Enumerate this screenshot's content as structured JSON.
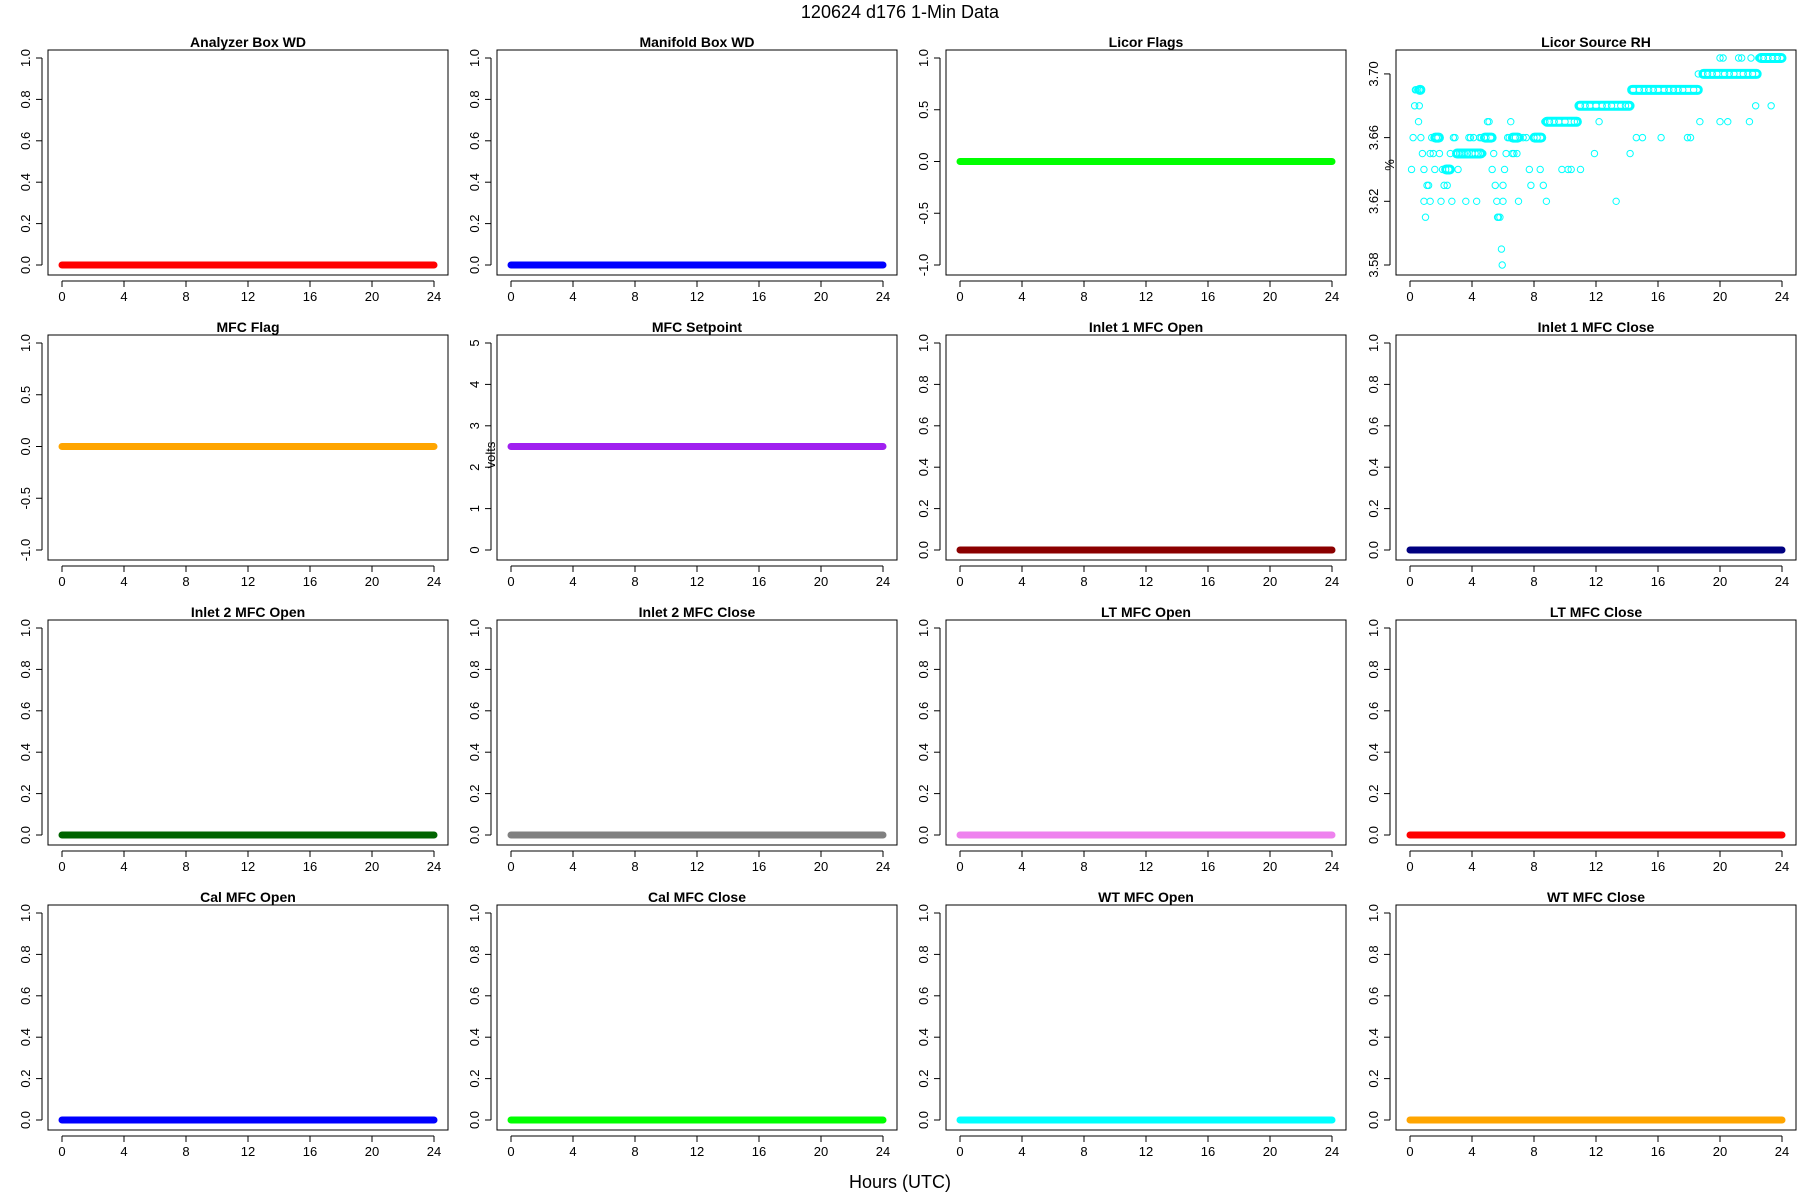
{
  "figure": {
    "title": "120624   d176   1-Min Data",
    "xlabel": "Hours (UTC)"
  },
  "chart_data": [
    {
      "type": "line",
      "title": "Analyzer Box WD",
      "color": "#ff0000",
      "ylabel": "",
      "ylim": [
        0,
        1
      ],
      "yticks": [
        0,
        0.2,
        0.4,
        0.6,
        0.8,
        1
      ],
      "ytick_labels": [
        "0.0",
        "0.2",
        "0.4",
        "0.6",
        "0.8",
        "1.0"
      ],
      "xlim": [
        0,
        24
      ],
      "xticks": [
        0,
        4,
        8,
        12,
        16,
        20,
        24
      ],
      "x": [
        0,
        24
      ],
      "y": [
        0,
        0
      ]
    },
    {
      "type": "line",
      "title": "Manifold Box WD",
      "color": "#0000ff",
      "ylabel": "",
      "ylim": [
        0,
        1
      ],
      "yticks": [
        0,
        0.2,
        0.4,
        0.6,
        0.8,
        1
      ],
      "ytick_labels": [
        "0.0",
        "0.2",
        "0.4",
        "0.6",
        "0.8",
        "1.0"
      ],
      "xlim": [
        0,
        24
      ],
      "xticks": [
        0,
        4,
        8,
        12,
        16,
        20,
        24
      ],
      "x": [
        0,
        24
      ],
      "y": [
        0,
        0
      ]
    },
    {
      "type": "line",
      "title": "Licor Flags",
      "color": "#00ff00",
      "ylabel": "",
      "ylim": [
        -1,
        1
      ],
      "yticks": [
        -1,
        -0.5,
        0,
        0.5,
        1
      ],
      "ytick_labels": [
        "-1.0",
        "-0.5",
        "0.0",
        "0.5",
        "1.0"
      ],
      "xlim": [
        0,
        24
      ],
      "xticks": [
        0,
        4,
        8,
        12,
        16,
        20,
        24
      ],
      "x": [
        0,
        24
      ],
      "y": [
        0,
        0
      ]
    },
    {
      "type": "scatter",
      "title": "Licor Source RH",
      "color": "#00ffff",
      "ylabel": "%",
      "ylim": [
        3.58,
        3.71
      ],
      "yticks": [
        3.58,
        3.62,
        3.66,
        3.7
      ],
      "ytick_labels": [
        "3.58",
        "3.62",
        "3.66",
        "3.70"
      ],
      "xlim": [
        0,
        24
      ],
      "xticks": [
        0,
        4,
        8,
        12,
        16,
        20,
        24
      ],
      "points": [
        [
          0.1,
          3.64
        ],
        [
          0.2,
          3.66
        ],
        [
          0.3,
          3.68
        ],
        [
          0.35,
          3.69
        ],
        [
          0.4,
          3.69
        ],
        [
          0.5,
          3.69
        ],
        [
          0.55,
          3.67
        ],
        [
          0.6,
          3.68
        ],
        [
          0.7,
          3.66
        ],
        [
          0.8,
          3.65
        ],
        [
          0.9,
          3.64
        ],
        [
          0.9,
          3.62
        ],
        [
          1.0,
          3.61
        ],
        [
          1.1,
          3.63
        ],
        [
          1.2,
          3.63
        ],
        [
          1.3,
          3.62
        ],
        [
          1.3,
          3.65
        ],
        [
          1.4,
          3.66
        ],
        [
          1.5,
          3.65
        ],
        [
          1.6,
          3.64
        ],
        [
          1.7,
          3.66
        ],
        [
          1.8,
          3.66
        ],
        [
          1.9,
          3.65
        ],
        [
          2.0,
          3.62
        ],
        [
          2.1,
          3.64
        ],
        [
          2.2,
          3.63
        ],
        [
          2.3,
          3.64
        ],
        [
          2.4,
          3.63
        ],
        [
          2.5,
          3.64
        ],
        [
          2.6,
          3.65
        ],
        [
          2.7,
          3.62
        ],
        [
          2.8,
          3.66
        ],
        [
          2.9,
          3.66
        ],
        [
          3.0,
          3.65
        ],
        [
          3.1,
          3.64
        ],
        [
          3.2,
          3.65
        ],
        [
          3.3,
          3.65
        ],
        [
          3.4,
          3.65
        ],
        [
          3.5,
          3.65
        ],
        [
          3.6,
          3.62
        ],
        [
          3.7,
          3.65
        ],
        [
          3.8,
          3.66
        ],
        [
          3.9,
          3.66
        ],
        [
          4.0,
          3.65
        ],
        [
          4.1,
          3.66
        ],
        [
          4.2,
          3.65
        ],
        [
          4.3,
          3.62
        ],
        [
          4.4,
          3.65
        ],
        [
          4.5,
          3.66
        ],
        [
          4.6,
          3.66
        ],
        [
          4.7,
          3.65
        ],
        [
          4.8,
          3.66
        ],
        [
          4.9,
          3.66
        ],
        [
          5.0,
          3.67
        ],
        [
          5.1,
          3.67
        ],
        [
          5.2,
          3.66
        ],
        [
          5.3,
          3.64
        ],
        [
          5.4,
          3.65
        ],
        [
          5.5,
          3.63
        ],
        [
          5.6,
          3.62
        ],
        [
          5.65,
          3.61
        ],
        [
          5.7,
          3.61
        ],
        [
          5.8,
          3.61
        ],
        [
          5.9,
          3.59
        ],
        [
          5.95,
          3.58
        ],
        [
          6.0,
          3.62
        ],
        [
          6.0,
          3.63
        ],
        [
          6.1,
          3.64
        ],
        [
          6.2,
          3.65
        ],
        [
          6.3,
          3.66
        ],
        [
          6.4,
          3.66
        ],
        [
          6.5,
          3.67
        ],
        [
          6.6,
          3.65
        ],
        [
          6.7,
          3.65
        ],
        [
          6.8,
          3.66
        ],
        [
          6.9,
          3.65
        ],
        [
          7.0,
          3.62
        ],
        [
          7.1,
          3.66
        ],
        [
          7.3,
          3.66
        ],
        [
          7.5,
          3.66
        ],
        [
          7.7,
          3.64
        ],
        [
          7.8,
          3.63
        ],
        [
          8.0,
          3.66
        ],
        [
          8.2,
          3.66
        ],
        [
          8.4,
          3.64
        ],
        [
          8.6,
          3.63
        ],
        [
          8.7,
          3.67
        ],
        [
          8.8,
          3.62
        ],
        [
          9.0,
          3.67
        ],
        [
          9.3,
          3.67
        ],
        [
          9.6,
          3.67
        ],
        [
          9.8,
          3.64
        ],
        [
          10.0,
          3.67
        ],
        [
          10.2,
          3.64
        ],
        [
          10.4,
          3.64
        ],
        [
          10.6,
          3.67
        ],
        [
          10.8,
          3.67
        ],
        [
          11.0,
          3.64
        ],
        [
          11.0,
          3.68
        ],
        [
          11.3,
          3.68
        ],
        [
          11.6,
          3.68
        ],
        [
          11.9,
          3.65
        ],
        [
          12.0,
          3.68
        ],
        [
          12.2,
          3.67
        ],
        [
          12.4,
          3.68
        ],
        [
          12.7,
          3.68
        ],
        [
          13.0,
          3.68
        ],
        [
          13.3,
          3.62
        ],
        [
          13.6,
          3.68
        ],
        [
          13.9,
          3.68
        ],
        [
          14.1,
          3.68
        ],
        [
          14.2,
          3.65
        ],
        [
          14.4,
          3.69
        ],
        [
          14.6,
          3.66
        ],
        [
          14.8,
          3.69
        ],
        [
          15.0,
          3.66
        ],
        [
          15.1,
          3.69
        ],
        [
          15.4,
          3.69
        ],
        [
          15.7,
          3.69
        ],
        [
          16.0,
          3.69
        ],
        [
          16.2,
          3.66
        ],
        [
          16.4,
          3.69
        ],
        [
          16.7,
          3.69
        ],
        [
          17.0,
          3.69
        ],
        [
          17.3,
          3.69
        ],
        [
          17.6,
          3.69
        ],
        [
          17.9,
          3.66
        ],
        [
          18.1,
          3.66
        ],
        [
          18.3,
          3.69
        ],
        [
          18.6,
          3.7
        ],
        [
          18.7,
          3.67
        ],
        [
          18.9,
          3.7
        ],
        [
          19.2,
          3.7
        ],
        [
          19.5,
          3.7
        ],
        [
          19.8,
          3.7
        ],
        [
          20.0,
          3.71
        ],
        [
          20.0,
          3.67
        ],
        [
          20.2,
          3.71
        ],
        [
          20.3,
          3.7
        ],
        [
          20.5,
          3.67
        ],
        [
          20.6,
          3.7
        ],
        [
          20.9,
          3.7
        ],
        [
          21.2,
          3.71
        ],
        [
          21.4,
          3.71
        ],
        [
          21.5,
          3.7
        ],
        [
          21.8,
          3.7
        ],
        [
          21.9,
          3.67
        ],
        [
          22.0,
          3.71
        ],
        [
          22.1,
          3.7
        ],
        [
          22.3,
          3.68
        ],
        [
          22.5,
          3.71
        ],
        [
          22.8,
          3.71
        ],
        [
          23.1,
          3.71
        ],
        [
          23.3,
          3.68
        ],
        [
          23.4,
          3.71
        ],
        [
          23.7,
          3.71
        ],
        [
          24.0,
          3.71
        ]
      ],
      "runs": [
        [
          0.6,
          3.69,
          0.7
        ],
        [
          1.6,
          3.66,
          1.9
        ],
        [
          2.3,
          3.64,
          2.6
        ],
        [
          3.0,
          3.65,
          4.6
        ],
        [
          4.8,
          3.66,
          5.3
        ],
        [
          6.6,
          3.66,
          7.0
        ],
        [
          8.0,
          3.66,
          8.5
        ],
        [
          8.8,
          3.67,
          10.8
        ],
        [
          10.9,
          3.68,
          14.2
        ],
        [
          14.3,
          3.69,
          18.6
        ],
        [
          18.9,
          3.7,
          22.4
        ],
        [
          22.6,
          3.71,
          24.0
        ]
      ]
    },
    {
      "type": "line",
      "title": "MFC Flag",
      "color": "#ffa500",
      "ylabel": "",
      "ylim": [
        -1,
        1
      ],
      "yticks": [
        -1,
        -0.5,
        0,
        0.5,
        1
      ],
      "ytick_labels": [
        "-1.0",
        "-0.5",
        "0.0",
        "0.5",
        "1.0"
      ],
      "xlim": [
        0,
        24
      ],
      "xticks": [
        0,
        4,
        8,
        12,
        16,
        20,
        24
      ],
      "x": [
        0,
        24
      ],
      "y": [
        0,
        0
      ]
    },
    {
      "type": "line",
      "title": "MFC Setpoint",
      "color": "#a020f0",
      "ylabel": "volts",
      "ylim": [
        0,
        5
      ],
      "yticks": [
        0,
        1,
        2,
        3,
        4,
        5
      ],
      "ytick_labels": [
        "0",
        "1",
        "2",
        "3",
        "4",
        "5"
      ],
      "xlim": [
        0,
        24
      ],
      "xticks": [
        0,
        4,
        8,
        12,
        16,
        20,
        24
      ],
      "x": [
        0,
        24
      ],
      "y": [
        2.5,
        2.5
      ]
    },
    {
      "type": "line",
      "title": "Inlet 1 MFC Open",
      "color": "#8b0000",
      "ylabel": "",
      "ylim": [
        0,
        1
      ],
      "yticks": [
        0,
        0.2,
        0.4,
        0.6,
        0.8,
        1
      ],
      "ytick_labels": [
        "0.0",
        "0.2",
        "0.4",
        "0.6",
        "0.8",
        "1.0"
      ],
      "xlim": [
        0,
        24
      ],
      "xticks": [
        0,
        4,
        8,
        12,
        16,
        20,
        24
      ],
      "x": [
        0,
        24
      ],
      "y": [
        0,
        0
      ]
    },
    {
      "type": "line",
      "title": "Inlet 1 MFC Close",
      "color": "#000080",
      "ylabel": "",
      "ylim": [
        0,
        1
      ],
      "yticks": [
        0,
        0.2,
        0.4,
        0.6,
        0.8,
        1
      ],
      "ytick_labels": [
        "0.0",
        "0.2",
        "0.4",
        "0.6",
        "0.8",
        "1.0"
      ],
      "xlim": [
        0,
        24
      ],
      "xticks": [
        0,
        4,
        8,
        12,
        16,
        20,
        24
      ],
      "x": [
        0,
        24
      ],
      "y": [
        0,
        0
      ]
    },
    {
      "type": "line",
      "title": "Inlet 2 MFC Open",
      "color": "#006400",
      "ylabel": "",
      "ylim": [
        0,
        1
      ],
      "yticks": [
        0,
        0.2,
        0.4,
        0.6,
        0.8,
        1
      ],
      "ytick_labels": [
        "0.0",
        "0.2",
        "0.4",
        "0.6",
        "0.8",
        "1.0"
      ],
      "xlim": [
        0,
        24
      ],
      "xticks": [
        0,
        4,
        8,
        12,
        16,
        20,
        24
      ],
      "x": [
        0,
        24
      ],
      "y": [
        0,
        0
      ]
    },
    {
      "type": "line",
      "title": "Inlet 2 MFC Close",
      "color": "#808080",
      "ylabel": "",
      "ylim": [
        0,
        1
      ],
      "yticks": [
        0,
        0.2,
        0.4,
        0.6,
        0.8,
        1
      ],
      "ytick_labels": [
        "0.0",
        "0.2",
        "0.4",
        "0.6",
        "0.8",
        "1.0"
      ],
      "xlim": [
        0,
        24
      ],
      "xticks": [
        0,
        4,
        8,
        12,
        16,
        20,
        24
      ],
      "x": [
        0,
        24
      ],
      "y": [
        0,
        0
      ]
    },
    {
      "type": "line",
      "title": "LT MFC Open",
      "color": "#ee82ee",
      "ylabel": "",
      "ylim": [
        0,
        1
      ],
      "yticks": [
        0,
        0.2,
        0.4,
        0.6,
        0.8,
        1
      ],
      "ytick_labels": [
        "0.0",
        "0.2",
        "0.4",
        "0.6",
        "0.8",
        "1.0"
      ],
      "xlim": [
        0,
        24
      ],
      "xticks": [
        0,
        4,
        8,
        12,
        16,
        20,
        24
      ],
      "x": [
        0,
        24
      ],
      "y": [
        0,
        0
      ]
    },
    {
      "type": "line",
      "title": "LT MFC Close",
      "color": "#ff0000",
      "ylabel": "",
      "ylim": [
        0,
        1
      ],
      "yticks": [
        0,
        0.2,
        0.4,
        0.6,
        0.8,
        1
      ],
      "ytick_labels": [
        "0.0",
        "0.2",
        "0.4",
        "0.6",
        "0.8",
        "1.0"
      ],
      "xlim": [
        0,
        24
      ],
      "xticks": [
        0,
        4,
        8,
        12,
        16,
        20,
        24
      ],
      "x": [
        0,
        24
      ],
      "y": [
        0,
        0
      ]
    },
    {
      "type": "line",
      "title": "Cal MFC Open",
      "color": "#0000ff",
      "ylabel": "",
      "ylim": [
        0,
        1
      ],
      "yticks": [
        0,
        0.2,
        0.4,
        0.6,
        0.8,
        1
      ],
      "ytick_labels": [
        "0.0",
        "0.2",
        "0.4",
        "0.6",
        "0.8",
        "1.0"
      ],
      "xlim": [
        0,
        24
      ],
      "xticks": [
        0,
        4,
        8,
        12,
        16,
        20,
        24
      ],
      "x": [
        0,
        24
      ],
      "y": [
        0,
        0
      ]
    },
    {
      "type": "line",
      "title": "Cal MFC Close",
      "color": "#00ff00",
      "ylabel": "",
      "ylim": [
        0,
        1
      ],
      "yticks": [
        0,
        0.2,
        0.4,
        0.6,
        0.8,
        1
      ],
      "ytick_labels": [
        "0.0",
        "0.2",
        "0.4",
        "0.6",
        "0.8",
        "1.0"
      ],
      "xlim": [
        0,
        24
      ],
      "xticks": [
        0,
        4,
        8,
        12,
        16,
        20,
        24
      ],
      "x": [
        0,
        24
      ],
      "y": [
        0,
        0
      ]
    },
    {
      "type": "line",
      "title": "WT MFC Open",
      "color": "#00ffff",
      "ylabel": "",
      "ylim": [
        0,
        1
      ],
      "yticks": [
        0,
        0.2,
        0.4,
        0.6,
        0.8,
        1
      ],
      "ytick_labels": [
        "0.0",
        "0.2",
        "0.4",
        "0.6",
        "0.8",
        "1.0"
      ],
      "xlim": [
        0,
        24
      ],
      "xticks": [
        0,
        4,
        8,
        12,
        16,
        20,
        24
      ],
      "x": [
        0,
        24
      ],
      "y": [
        0,
        0
      ]
    },
    {
      "type": "line",
      "title": "WT MFC Close",
      "color": "#ffa500",
      "ylabel": "",
      "ylim": [
        0,
        1
      ],
      "yticks": [
        0,
        0.2,
        0.4,
        0.6,
        0.8,
        1
      ],
      "ytick_labels": [
        "0.0",
        "0.2",
        "0.4",
        "0.6",
        "0.8",
        "1.0"
      ],
      "xlim": [
        0,
        24
      ],
      "xticks": [
        0,
        4,
        8,
        12,
        16,
        20,
        24
      ],
      "x": [
        0,
        24
      ],
      "y": [
        0,
        0
      ]
    }
  ]
}
